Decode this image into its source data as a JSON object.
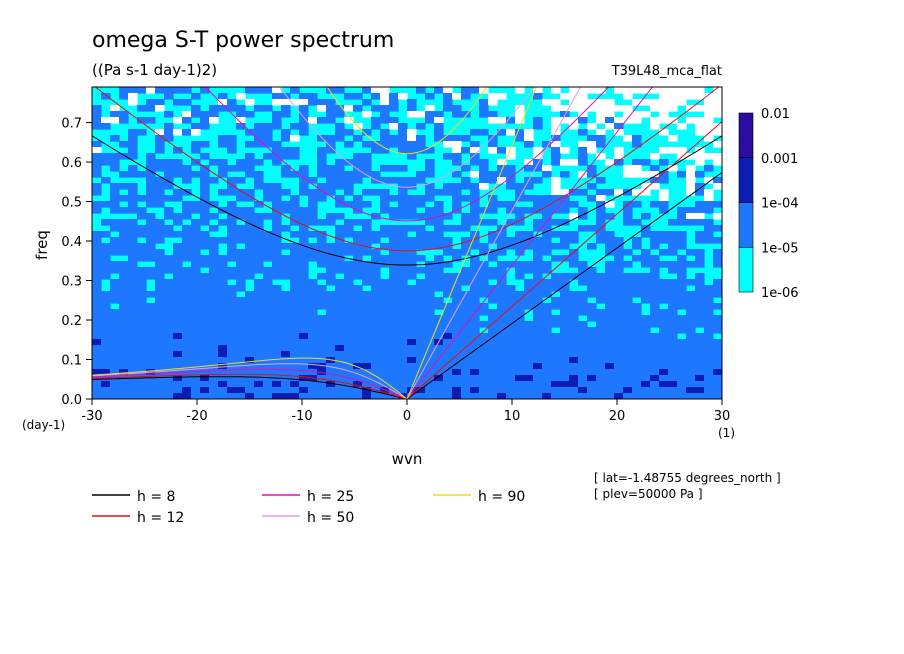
{
  "chart_data": {
    "type": "heatmap",
    "title": "omega S-T power spectrum",
    "units": "((Pa s-1 day-1)2)",
    "run_label": "T39L48_mca_flat",
    "xlabel": "wvn",
    "ylabel": "freq",
    "x_unit": "(1)",
    "y_unit": "(day-1)",
    "xlim": [
      -30,
      30
    ],
    "ylim": [
      0,
      0.79
    ],
    "x_ticks": [
      -30,
      -20,
      -10,
      0,
      10,
      20,
      30
    ],
    "x_tick_labels": [
      "-30",
      "-20",
      "-10",
      "0",
      "10",
      "20",
      "30"
    ],
    "y_ticks": [
      0,
      0.1,
      0.2,
      0.3,
      0.4,
      0.5,
      0.6,
      0.7
    ],
    "y_tick_labels": [
      "0.0",
      "0.1",
      "0.2",
      "0.3",
      "0.4",
      "0.5",
      "0.6",
      "0.7"
    ],
    "colorbar": {
      "levels": [
        "1e-06",
        "1e-05",
        "1e-04",
        "0.001",
        "0.01"
      ],
      "colors": [
        "#00ffff",
        "#1e78ff",
        "#0a1eb4",
        "#2b0ba0"
      ]
    },
    "dispersion_curves": [
      {
        "label": "h =  8",
        "h": 8,
        "color": "#000000"
      },
      {
        "label": "h = 12",
        "h": 12,
        "color": "#e01010"
      },
      {
        "label": "h = 25",
        "h": 25,
        "color": "#dd10b0"
      },
      {
        "label": "h = 50",
        "h": 50,
        "color": "#e0a0e8"
      },
      {
        "label": "h = 90",
        "h": 90,
        "color": "#e8e010"
      }
    ],
    "annotations": [
      "[ lat=-1.48755 degrees_north ]",
      "[ plev=50000 Pa ]"
    ]
  }
}
